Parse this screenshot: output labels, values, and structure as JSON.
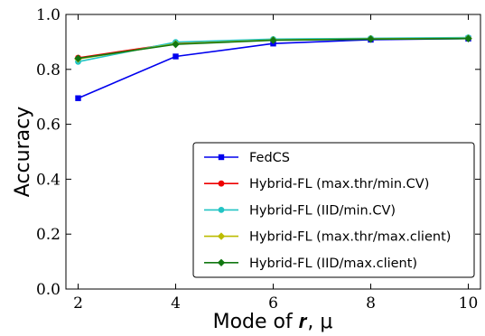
{
  "chart_data": {
    "type": "line",
    "xlabel": "Mode of 𝒓, μ",
    "ylabel": "Accuracy",
    "x": [
      2,
      4,
      6,
      8,
      10
    ],
    "xlim": [
      1.75,
      10.25
    ],
    "ylim": [
      0.0,
      1.0
    ],
    "xticks": [
      2,
      4,
      6,
      8,
      10
    ],
    "yticks": [
      0.0,
      0.2,
      0.4,
      0.6,
      0.8,
      1.0
    ],
    "xtick_labels": [
      "2",
      "4",
      "6",
      "8",
      "10"
    ],
    "ytick_labels": [
      "0.0",
      "0.2",
      "0.4",
      "0.6",
      "0.8",
      "1.0"
    ],
    "grid": false,
    "legend_position": "lower-right",
    "series": [
      {
        "name": "FedCS",
        "color": "#0000ee",
        "marker": "square",
        "values": [
          0.695,
          0.847,
          0.894,
          0.908,
          0.912
        ]
      },
      {
        "name": "Hybrid-FL (max.thr/min.CV)",
        "color": "#ee0000",
        "marker": "circle",
        "values": [
          0.842,
          0.895,
          0.908,
          0.912,
          0.914
        ]
      },
      {
        "name": "Hybrid-FL (IID/min.CV)",
        "color": "#22c4c4",
        "marker": "circle",
        "values": [
          0.828,
          0.899,
          0.91,
          0.913,
          0.916
        ]
      },
      {
        "name": "Hybrid-FL (max.thr/max.client)",
        "color": "#bcbc00",
        "marker": "diamond",
        "values": [
          0.838,
          0.893,
          0.907,
          0.911,
          0.913
        ]
      },
      {
        "name": "Hybrid-FL (IID/max.client)",
        "color": "#117711",
        "marker": "diamond",
        "values": [
          0.84,
          0.891,
          0.906,
          0.91,
          0.912
        ]
      }
    ]
  }
}
